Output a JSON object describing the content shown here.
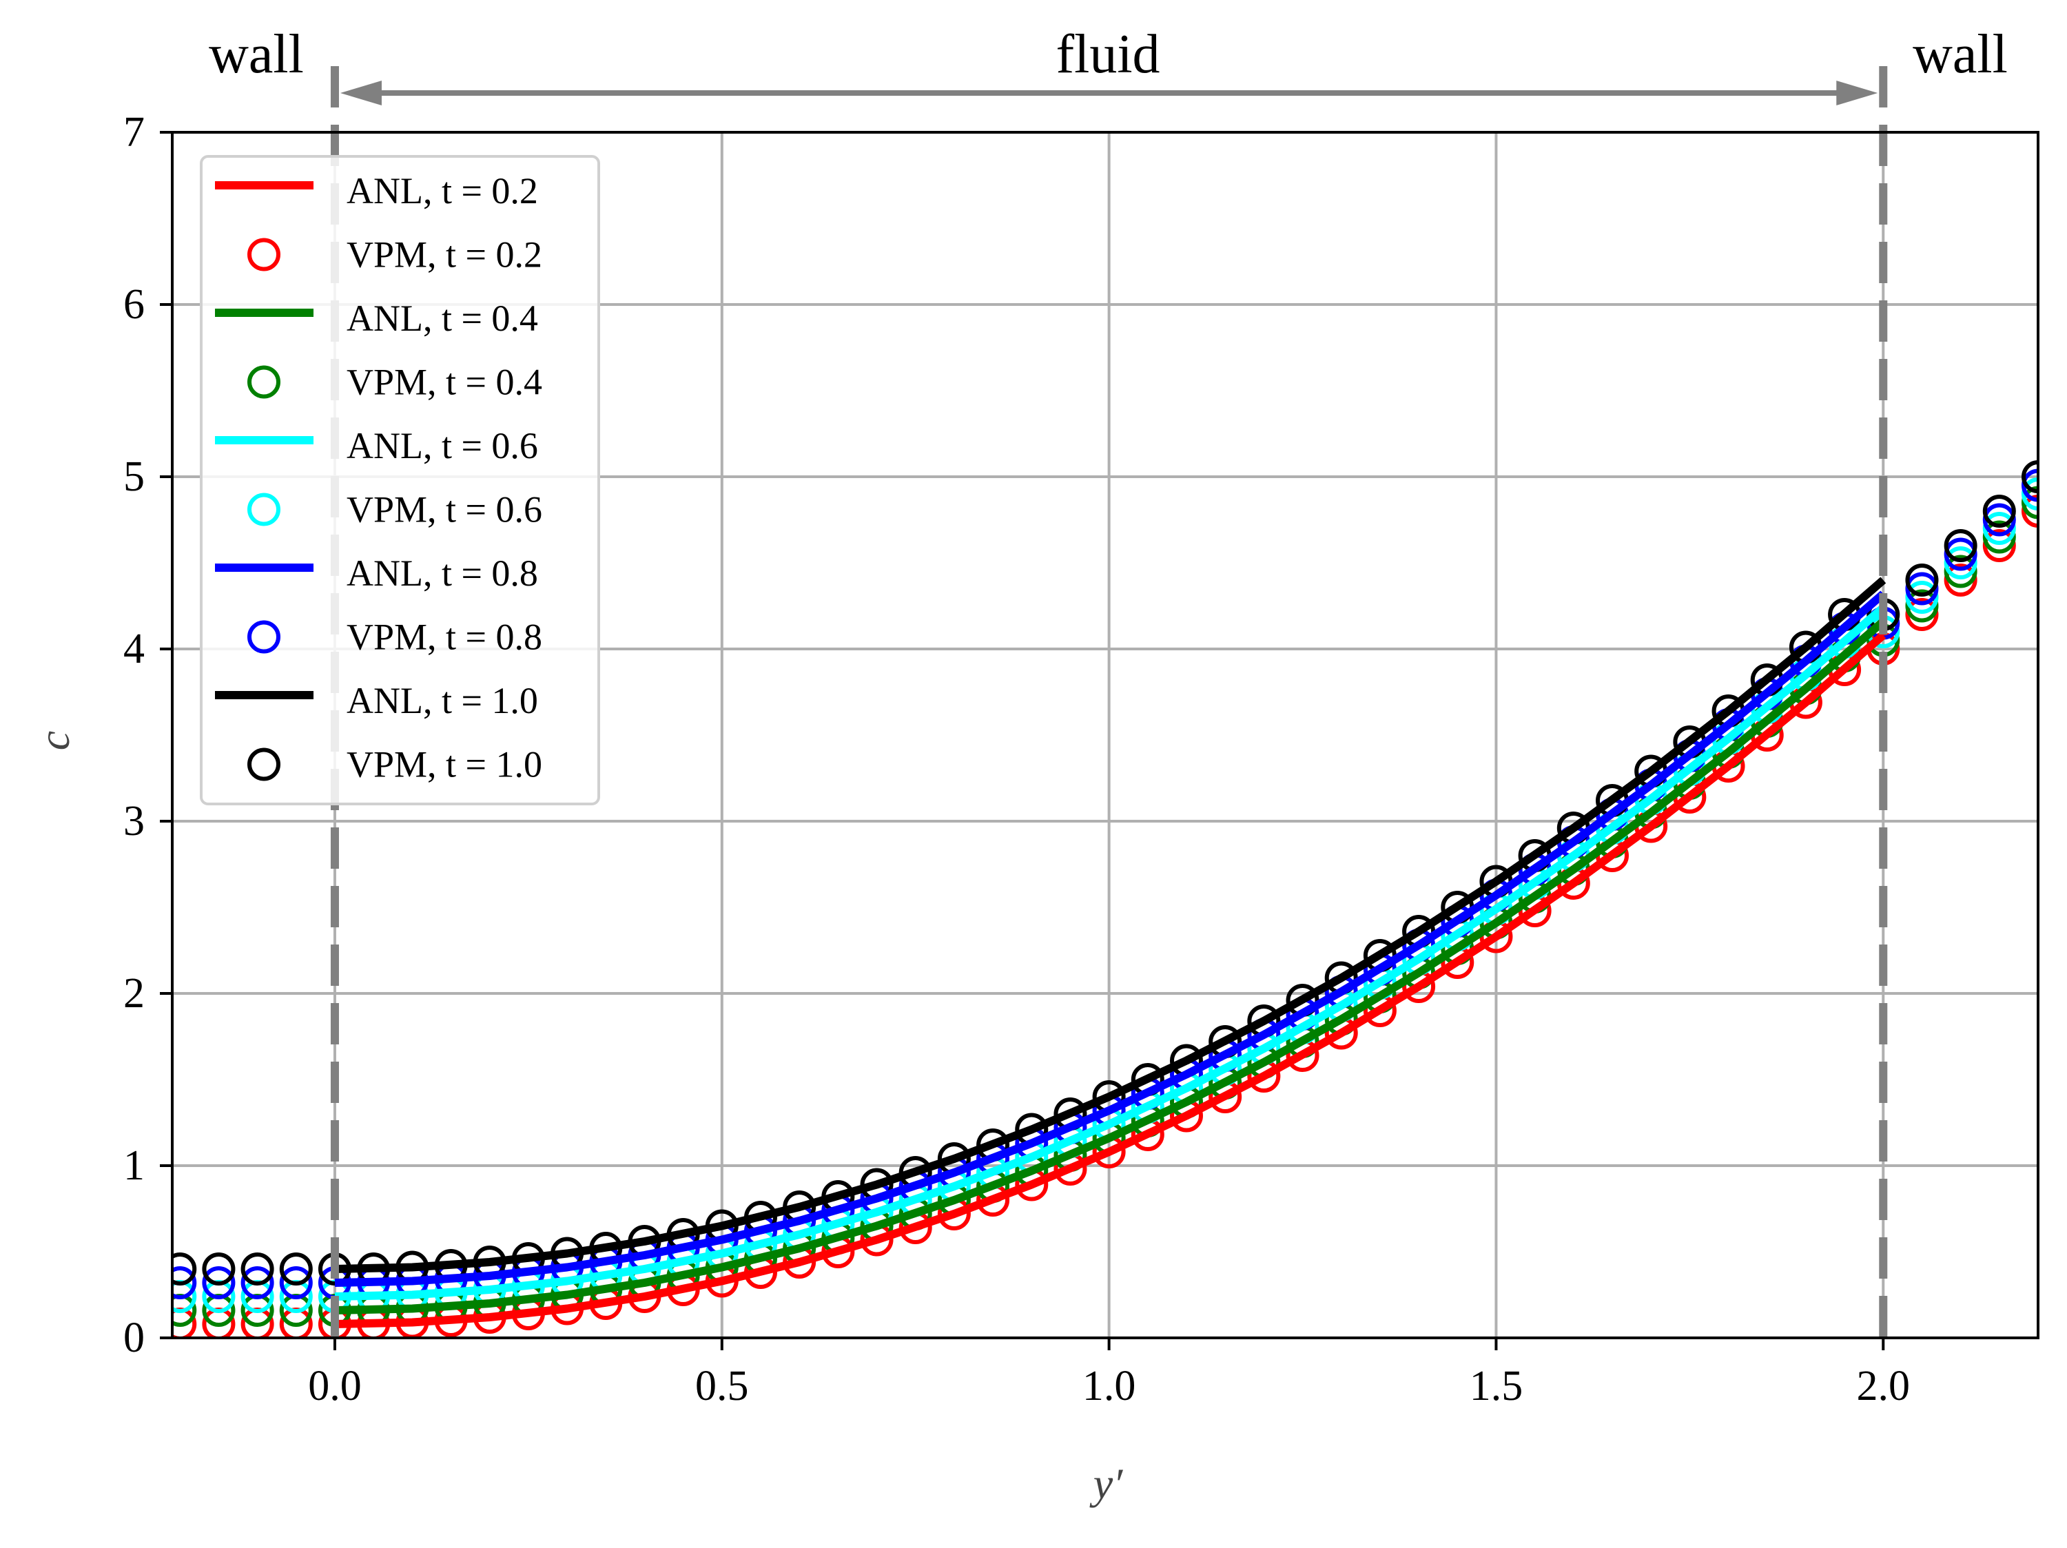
{
  "chart_data": {
    "type": "line",
    "title": "",
    "xlabel": "y′",
    "ylabel": "c",
    "xlim": [
      -0.21,
      2.2
    ],
    "ylim": [
      0,
      7
    ],
    "grid": true,
    "legend_placement": "top-left",
    "x_ticks": [
      "0.0",
      "0.5",
      "1.0",
      "1.5",
      "2.0"
    ],
    "x_tick_values": [
      0,
      0.5,
      1.0,
      1.5,
      2.0
    ],
    "y_ticks": [
      "0",
      "1",
      "2",
      "3",
      "4",
      "5",
      "6",
      "7"
    ],
    "y_tick_values": [
      0,
      1,
      2,
      3,
      4,
      5,
      6,
      7
    ],
    "annotations": {
      "wall_left": "wall",
      "fluid": "fluid",
      "wall_right": "wall",
      "wall_positions": [
        0.0,
        2.0
      ]
    },
    "anl_x": [
      0,
      0.1,
      0.2,
      0.3,
      0.4,
      0.5,
      0.6,
      0.7,
      0.8,
      0.9,
      1.0,
      1.1,
      1.2,
      1.3,
      1.4,
      1.5,
      1.6,
      1.7,
      1.8,
      1.9,
      2.0
    ],
    "vpm_x": [
      -0.2,
      -0.15,
      -0.1,
      -0.05,
      0,
      0.05,
      0.1,
      0.15,
      0.2,
      0.25,
      0.3,
      0.35,
      0.4,
      0.45,
      0.5,
      0.55,
      0.6,
      0.65,
      0.7,
      0.75,
      0.8,
      0.85,
      0.9,
      0.95,
      1.0,
      1.05,
      1.1,
      1.15,
      1.2,
      1.25,
      1.3,
      1.35,
      1.4,
      1.45,
      1.5,
      1.55,
      1.6,
      1.65,
      1.7,
      1.75,
      1.8,
      1.85,
      1.9,
      1.95,
      2.0,
      2.05,
      2.1,
      2.15,
      2.2
    ],
    "series": [
      {
        "name": "ANL, t = 0.2",
        "kind": "line",
        "color": "#ff0000",
        "values": [
          0.08,
          0.09,
          0.12,
          0.17,
          0.24,
          0.33,
          0.44,
          0.57,
          0.72,
          0.89,
          1.08,
          1.29,
          1.52,
          1.77,
          2.04,
          2.33,
          2.64,
          2.97,
          3.32,
          3.69,
          4.08
        ]
      },
      {
        "name": "VPM, t = 0.2",
        "kind": "marker",
        "color": "#ff0000",
        "values": [
          0.08,
          0.08,
          0.08,
          0.08,
          0.08,
          0.08,
          0.09,
          0.1,
          0.12,
          0.14,
          0.17,
          0.2,
          0.24,
          0.28,
          0.33,
          0.38,
          0.44,
          0.5,
          0.57,
          0.64,
          0.72,
          0.8,
          0.89,
          0.98,
          1.08,
          1.18,
          1.29,
          1.4,
          1.52,
          1.64,
          1.77,
          1.9,
          2.04,
          2.18,
          2.33,
          2.48,
          2.64,
          2.8,
          2.97,
          3.14,
          3.32,
          3.5,
          3.69,
          3.88,
          4.0,
          4.2,
          4.4,
          4.6,
          4.8
        ]
      },
      {
        "name": "ANL, t = 0.4",
        "kind": "line",
        "color": "#008000",
        "values": [
          0.16,
          0.17,
          0.2,
          0.25,
          0.32,
          0.41,
          0.52,
          0.65,
          0.8,
          0.97,
          1.16,
          1.37,
          1.6,
          1.85,
          2.12,
          2.41,
          2.72,
          3.05,
          3.4,
          3.77,
          4.16
        ]
      },
      {
        "name": "VPM, t = 0.4",
        "kind": "marker",
        "color": "#008000",
        "values": [
          0.16,
          0.16,
          0.16,
          0.16,
          0.16,
          0.16,
          0.17,
          0.18,
          0.2,
          0.22,
          0.25,
          0.28,
          0.32,
          0.36,
          0.41,
          0.46,
          0.52,
          0.58,
          0.65,
          0.72,
          0.8,
          0.88,
          0.97,
          1.06,
          1.16,
          1.26,
          1.37,
          1.48,
          1.6,
          1.72,
          1.85,
          1.98,
          2.12,
          2.26,
          2.41,
          2.56,
          2.72,
          2.88,
          3.05,
          3.22,
          3.4,
          3.58,
          3.77,
          3.96,
          4.05,
          4.25,
          4.45,
          4.65,
          4.85
        ]
      },
      {
        "name": "ANL, t = 0.6",
        "kind": "line",
        "color": "#00ffff",
        "values": [
          0.24,
          0.25,
          0.28,
          0.33,
          0.4,
          0.49,
          0.6,
          0.73,
          0.88,
          1.05,
          1.24,
          1.45,
          1.68,
          1.93,
          2.2,
          2.49,
          2.8,
          3.13,
          3.48,
          3.85,
          4.24
        ]
      },
      {
        "name": "VPM, t = 0.6",
        "kind": "marker",
        "color": "#00ffff",
        "values": [
          0.24,
          0.24,
          0.24,
          0.24,
          0.24,
          0.24,
          0.25,
          0.26,
          0.28,
          0.3,
          0.33,
          0.36,
          0.4,
          0.44,
          0.49,
          0.54,
          0.6,
          0.66,
          0.73,
          0.8,
          0.88,
          0.96,
          1.05,
          1.14,
          1.24,
          1.34,
          1.45,
          1.56,
          1.68,
          1.8,
          1.93,
          2.06,
          2.2,
          2.34,
          2.49,
          2.64,
          2.8,
          2.96,
          3.13,
          3.3,
          3.48,
          3.66,
          3.85,
          4.04,
          4.1,
          4.3,
          4.5,
          4.7,
          4.9
        ]
      },
      {
        "name": "ANL, t = 0.8",
        "kind": "line",
        "color": "#0000ff",
        "values": [
          0.32,
          0.33,
          0.36,
          0.41,
          0.48,
          0.57,
          0.68,
          0.81,
          0.96,
          1.13,
          1.32,
          1.53,
          1.76,
          2.01,
          2.28,
          2.57,
          2.88,
          3.21,
          3.56,
          3.93,
          4.32
        ]
      },
      {
        "name": "VPM, t = 0.8",
        "kind": "marker",
        "color": "#0000ff",
        "values": [
          0.32,
          0.32,
          0.32,
          0.32,
          0.32,
          0.32,
          0.33,
          0.34,
          0.36,
          0.38,
          0.41,
          0.44,
          0.48,
          0.52,
          0.57,
          0.62,
          0.68,
          0.74,
          0.81,
          0.88,
          0.96,
          1.04,
          1.13,
          1.22,
          1.32,
          1.42,
          1.53,
          1.64,
          1.76,
          1.88,
          2.01,
          2.14,
          2.28,
          2.42,
          2.57,
          2.72,
          2.88,
          3.04,
          3.21,
          3.38,
          3.56,
          3.74,
          3.93,
          4.12,
          4.15,
          4.35,
          4.55,
          4.75,
          4.95
        ]
      },
      {
        "name": "ANL, t = 1.0",
        "kind": "line",
        "color": "#000000",
        "values": [
          0.4,
          0.41,
          0.44,
          0.49,
          0.56,
          0.65,
          0.76,
          0.89,
          1.04,
          1.21,
          1.4,
          1.61,
          1.84,
          2.09,
          2.36,
          2.65,
          2.96,
          3.29,
          3.64,
          4.01,
          4.4
        ]
      },
      {
        "name": "VPM, t = 1.0",
        "kind": "marker",
        "color": "#000000",
        "values": [
          0.4,
          0.4,
          0.4,
          0.4,
          0.4,
          0.4,
          0.41,
          0.42,
          0.44,
          0.46,
          0.49,
          0.52,
          0.56,
          0.6,
          0.65,
          0.7,
          0.76,
          0.82,
          0.89,
          0.96,
          1.04,
          1.12,
          1.21,
          1.3,
          1.4,
          1.5,
          1.61,
          1.72,
          1.84,
          1.96,
          2.09,
          2.22,
          2.36,
          2.5,
          2.65,
          2.8,
          2.96,
          3.12,
          3.29,
          3.46,
          3.64,
          3.82,
          4.01,
          4.2,
          4.2,
          4.4,
          4.6,
          4.8,
          5.0
        ]
      }
    ]
  }
}
